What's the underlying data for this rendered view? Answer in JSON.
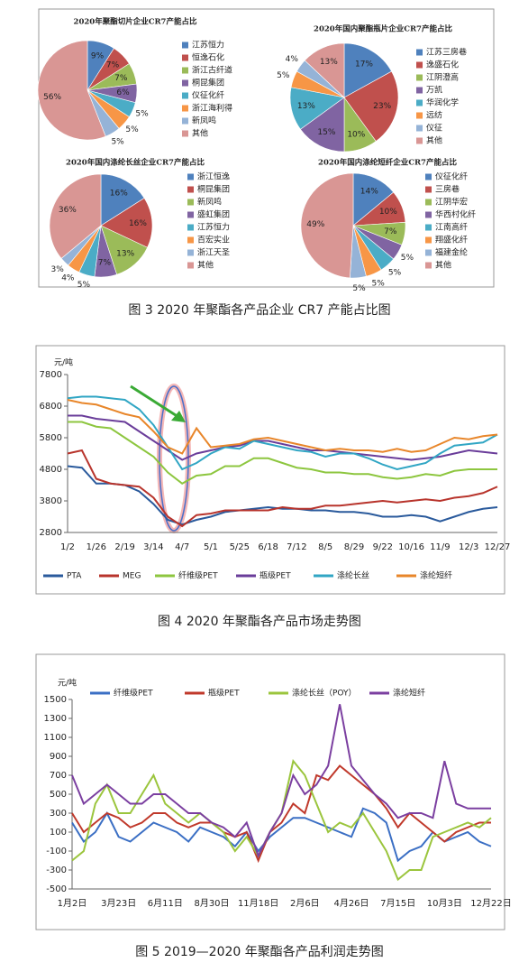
{
  "captions": [
    "图 3  2020 年聚酯各产品企业 CR7 产能占比图",
    "图 4  2020 年聚酯各产品市场走势图",
    "图 5  2019—2020 年聚酯各产品利润走势图"
  ],
  "chart_data": [
    {
      "type": "pie",
      "title": "2020年聚酯切片企业CR7产能占比",
      "categories": [
        "江苏恒力",
        "恒逸石化",
        "浙江古纤道",
        "桐昆集团",
        "仪征化纤",
        "浙江海利得",
        "新凤鸣",
        "其他"
      ],
      "values": [
        9,
        7,
        7,
        6,
        5,
        5,
        5,
        56
      ],
      "value_labels": [
        "9%",
        "7%",
        "7%",
        "6%",
        "5%",
        "5%",
        "5%",
        "56%"
      ],
      "colors": [
        "#4f81bd",
        "#c0504d",
        "#9bbb59",
        "#8064a2",
        "#4bacc6",
        "#f79646",
        "#95b3d7",
        "#d99694"
      ]
    },
    {
      "type": "pie",
      "title": "2020年国内聚酯瓶片企业CR7产能占比",
      "categories": [
        "江苏三房巷",
        "逸盛石化",
        "江阴澄高",
        "万凯",
        "华润化学",
        "远纺",
        "仪征",
        "其他"
      ],
      "values": [
        17,
        23,
        10,
        15,
        13,
        5,
        4,
        13
      ],
      "value_labels": [
        "17%",
        "23%",
        "10%",
        "15%",
        "13%",
        "5%",
        "4%",
        "13%"
      ],
      "colors": [
        "#4f81bd",
        "#c0504d",
        "#9bbb59",
        "#8064a2",
        "#4bacc6",
        "#f79646",
        "#95b3d7",
        "#d99694"
      ]
    },
    {
      "type": "pie",
      "title": "2020年国内涤纶长丝企业CR7产能占比",
      "categories": [
        "浙江恒逸",
        "桐昆集团",
        "新凤鸣",
        "盛虹集团",
        "江苏恒力",
        "百宏实业",
        "浙江天圣",
        "其他"
      ],
      "values": [
        16,
        16,
        13,
        7,
        5,
        4,
        3,
        36
      ],
      "value_labels": [
        "16%",
        "16%",
        "13%",
        "7%",
        "5%",
        "4%",
        "3%",
        "36%"
      ],
      "colors": [
        "#4f81bd",
        "#c0504d",
        "#9bbb59",
        "#8064a2",
        "#4bacc6",
        "#f79646",
        "#95b3d7",
        "#d99694"
      ]
    },
    {
      "type": "pie",
      "title": "2020年国内涤纶短纤企业CR7产能占比",
      "categories": [
        "仪征化纤",
        "三房巷",
        "江阴华宏",
        "华西村化纤",
        "江南高纤",
        "翔盛化纤",
        "福建金纶",
        "其他"
      ],
      "values": [
        14,
        10,
        7,
        5,
        5,
        5,
        5,
        49
      ],
      "value_labels": [
        "14%",
        "10%",
        "7%",
        "5%",
        "5%",
        "5%",
        "5%",
        "49%"
      ],
      "colors": [
        "#4f81bd",
        "#c0504d",
        "#9bbb59",
        "#8064a2",
        "#4bacc6",
        "#f79646",
        "#95b3d7",
        "#d99694"
      ]
    },
    {
      "type": "line",
      "y_label": "元/吨",
      "categories": [
        "1/2",
        null,
        "1/26",
        null,
        "2/19",
        null,
        "3/14",
        null,
        "4/7",
        null,
        "5/1",
        null,
        "5/25",
        null,
        "6/18",
        null,
        "7/12",
        null,
        "8/5",
        null,
        "8/29",
        null,
        "9/22",
        null,
        "10/16",
        null,
        "11/9",
        null,
        "12/3",
        null,
        "12/27"
      ],
      "ylim": [
        2800,
        7800
      ],
      "yticks": [
        2800,
        3800,
        4800,
        5800,
        6800,
        7800
      ],
      "series": [
        {
          "name": "PTA",
          "color": "#2a5a9c",
          "values": [
            4900,
            4850,
            4350,
            4350,
            4300,
            4100,
            3700,
            3200,
            3050,
            3200,
            3300,
            3450,
            3500,
            3550,
            3600,
            3550,
            3550,
            3500,
            3500,
            3450,
            3450,
            3400,
            3300,
            3300,
            3350,
            3300,
            3150,
            3300,
            3450,
            3550,
            3600
          ]
        },
        {
          "name": "MEG",
          "color": "#b8342c",
          "values": [
            5300,
            5400,
            4500,
            4350,
            4300,
            4250,
            3900,
            3300,
            3000,
            3350,
            3400,
            3500,
            3500,
            3500,
            3500,
            3600,
            3550,
            3550,
            3650,
            3650,
            3700,
            3750,
            3800,
            3750,
            3800,
            3850,
            3800,
            3900,
            3950,
            4050,
            4250
          ]
        },
        {
          "name": "纤维级PET",
          "color": "#8dc63f",
          "values": [
            6300,
            6300,
            6150,
            6100,
            5800,
            5500,
            5200,
            4700,
            4350,
            4600,
            4650,
            4900,
            4900,
            5150,
            5150,
            5000,
            4850,
            4800,
            4700,
            4700,
            4650,
            4650,
            4550,
            4500,
            4550,
            4650,
            4600,
            4750,
            4800,
            4800,
            4800
          ]
        },
        {
          "name": "瓶级PET",
          "color": "#6a3d9a",
          "values": [
            6500,
            6500,
            6400,
            6350,
            6300,
            6000,
            5700,
            5400,
            5100,
            5300,
            5400,
            5500,
            5550,
            5700,
            5700,
            5600,
            5500,
            5400,
            5400,
            5350,
            5300,
            5250,
            5200,
            5150,
            5100,
            5150,
            5200,
            5300,
            5400,
            5350,
            5300
          ]
        },
        {
          "name": "涤纶长丝",
          "color": "#31a6c4",
          "values": [
            7050,
            7100,
            7100,
            7050,
            7000,
            6700,
            6200,
            5500,
            4800,
            5000,
            5300,
            5500,
            5450,
            5700,
            5600,
            5500,
            5400,
            5350,
            5200,
            5300,
            5300,
            5150,
            4950,
            4800,
            4900,
            5000,
            5300,
            5550,
            5600,
            5650,
            5900
          ]
        },
        {
          "name": "涤纶短纤",
          "color": "#e8862a",
          "values": [
            7000,
            6900,
            6850,
            6700,
            6550,
            6450,
            6000,
            5500,
            5300,
            6100,
            5500,
            5550,
            5600,
            5750,
            5800,
            5700,
            5600,
            5500,
            5400,
            5450,
            5400,
            5400,
            5350,
            5450,
            5350,
            5400,
            5600,
            5800,
            5750,
            5850,
            5900
          ]
        }
      ]
    },
    {
      "type": "line",
      "y_label": "元/吨",
      "categories": [
        "1月2日",
        null,
        null,
        null,
        "3月23日",
        null,
        null,
        null,
        "6月11日",
        null,
        null,
        null,
        "8月30日",
        null,
        null,
        null,
        "11月18日",
        null,
        null,
        null,
        "2月6日",
        null,
        null,
        null,
        "4月26日",
        null,
        null,
        null,
        "7月15日",
        null,
        null,
        null,
        "10月3日",
        null,
        null,
        null,
        "12月22日"
      ],
      "ylim": [
        -500,
        1500
      ],
      "yticks": [
        -500,
        -300,
        -100,
        100,
        300,
        500,
        700,
        900,
        1100,
        1300,
        1500
      ],
      "series": [
        {
          "name": "纤维级PET",
          "color": "#3b6fc4",
          "values": [
            200,
            0,
            100,
            300,
            50,
            0,
            100,
            200,
            150,
            100,
            0,
            150,
            100,
            50,
            -50,
            100,
            -100,
            50,
            150,
            250,
            250,
            200,
            150,
            100,
            50,
            350,
            300,
            200,
            -200,
            -100,
            -50,
            100,
            0,
            50,
            100,
            0,
            -50
          ]
        },
        {
          "name": "瓶级PET",
          "color": "#c0392b",
          "values": [
            300,
            100,
            200,
            300,
            250,
            150,
            200,
            300,
            300,
            200,
            150,
            200,
            200,
            100,
            50,
            100,
            -200,
            100,
            200,
            400,
            300,
            700,
            650,
            800,
            700,
            600,
            500,
            350,
            150,
            300,
            200,
            100,
            0,
            100,
            150,
            200,
            200
          ]
        },
        {
          "name": "涤纶长丝（POY）",
          "color": "#9bc53d",
          "values": [
            -200,
            -100,
            400,
            600,
            300,
            300,
            500,
            700,
            400,
            300,
            200,
            300,
            200,
            100,
            -100,
            50,
            -150,
            100,
            300,
            850,
            700,
            400,
            100,
            200,
            150,
            300,
            100,
            -100,
            -400,
            -300,
            -300,
            50,
            100,
            150,
            200,
            150,
            250
          ]
        },
        {
          "name": "涤纶短纤",
          "color": "#7b3fa0",
          "values": [
            700,
            400,
            500,
            600,
            500,
            400,
            400,
            500,
            500,
            400,
            300,
            300,
            200,
            150,
            50,
            200,
            -150,
            100,
            300,
            700,
            500,
            600,
            800,
            1450,
            800,
            650,
            500,
            400,
            250,
            300,
            300,
            250,
            850,
            400,
            350,
            350,
            350
          ]
        }
      ]
    }
  ]
}
